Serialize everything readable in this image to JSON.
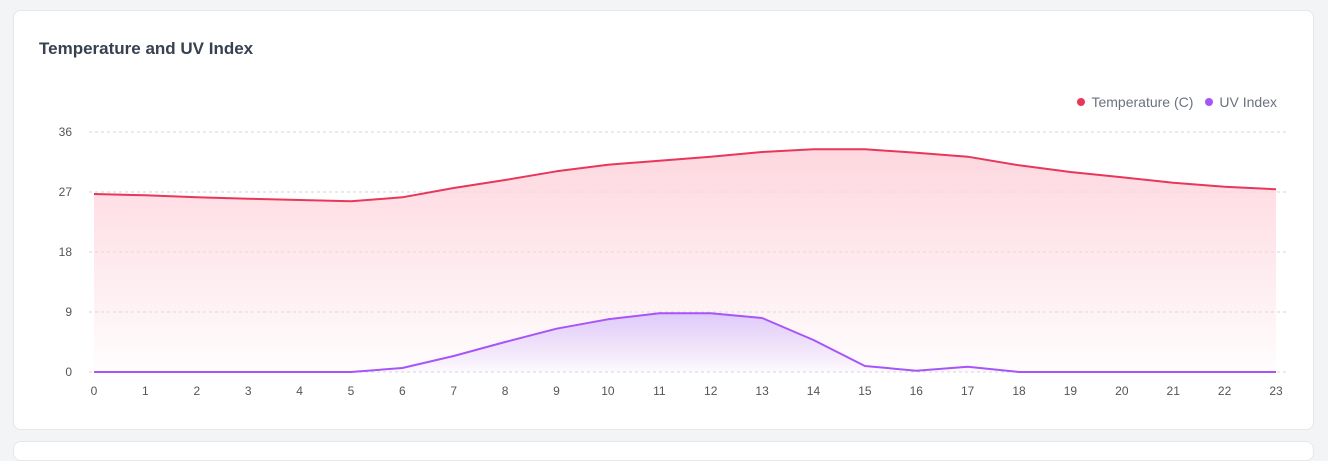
{
  "card": {
    "title": "Temperature and UV Index"
  },
  "colors": {
    "temperature": "#e8375a",
    "temperature_fill": "#fdd5dd",
    "uv": "#a855f7",
    "uv_fill": "#dcc6fb",
    "grid": "#d1d5db"
  },
  "chart_data": {
    "type": "area",
    "title": "Temperature and UV Index",
    "xlabel": "",
    "ylabel": "",
    "ylim": [
      0,
      36
    ],
    "y_ticks": [
      0,
      9,
      18,
      27,
      36
    ],
    "grid": true,
    "legend_position": "top-right",
    "x": [
      0,
      1,
      2,
      3,
      4,
      5,
      6,
      7,
      8,
      9,
      10,
      11,
      12,
      13,
      14,
      15,
      16,
      17,
      18,
      19,
      20,
      21,
      22,
      23
    ],
    "series": [
      {
        "name": "Temperature (C)",
        "values": [
          26.7,
          26.5,
          26.2,
          26.0,
          25.8,
          25.6,
          26.2,
          27.6,
          28.8,
          30.1,
          31.1,
          31.7,
          32.3,
          33.0,
          33.4,
          33.4,
          32.9,
          32.3,
          31.0,
          30.0,
          29.2,
          28.4,
          27.8,
          27.4
        ]
      },
      {
        "name": "UV Index",
        "values": [
          0,
          0,
          0,
          0,
          0,
          0,
          0.6,
          2.4,
          4.5,
          6.5,
          7.9,
          8.8,
          8.8,
          8.1,
          4.8,
          0.9,
          0.2,
          0.8,
          0,
          0,
          0,
          0,
          0,
          0
        ]
      }
    ]
  }
}
